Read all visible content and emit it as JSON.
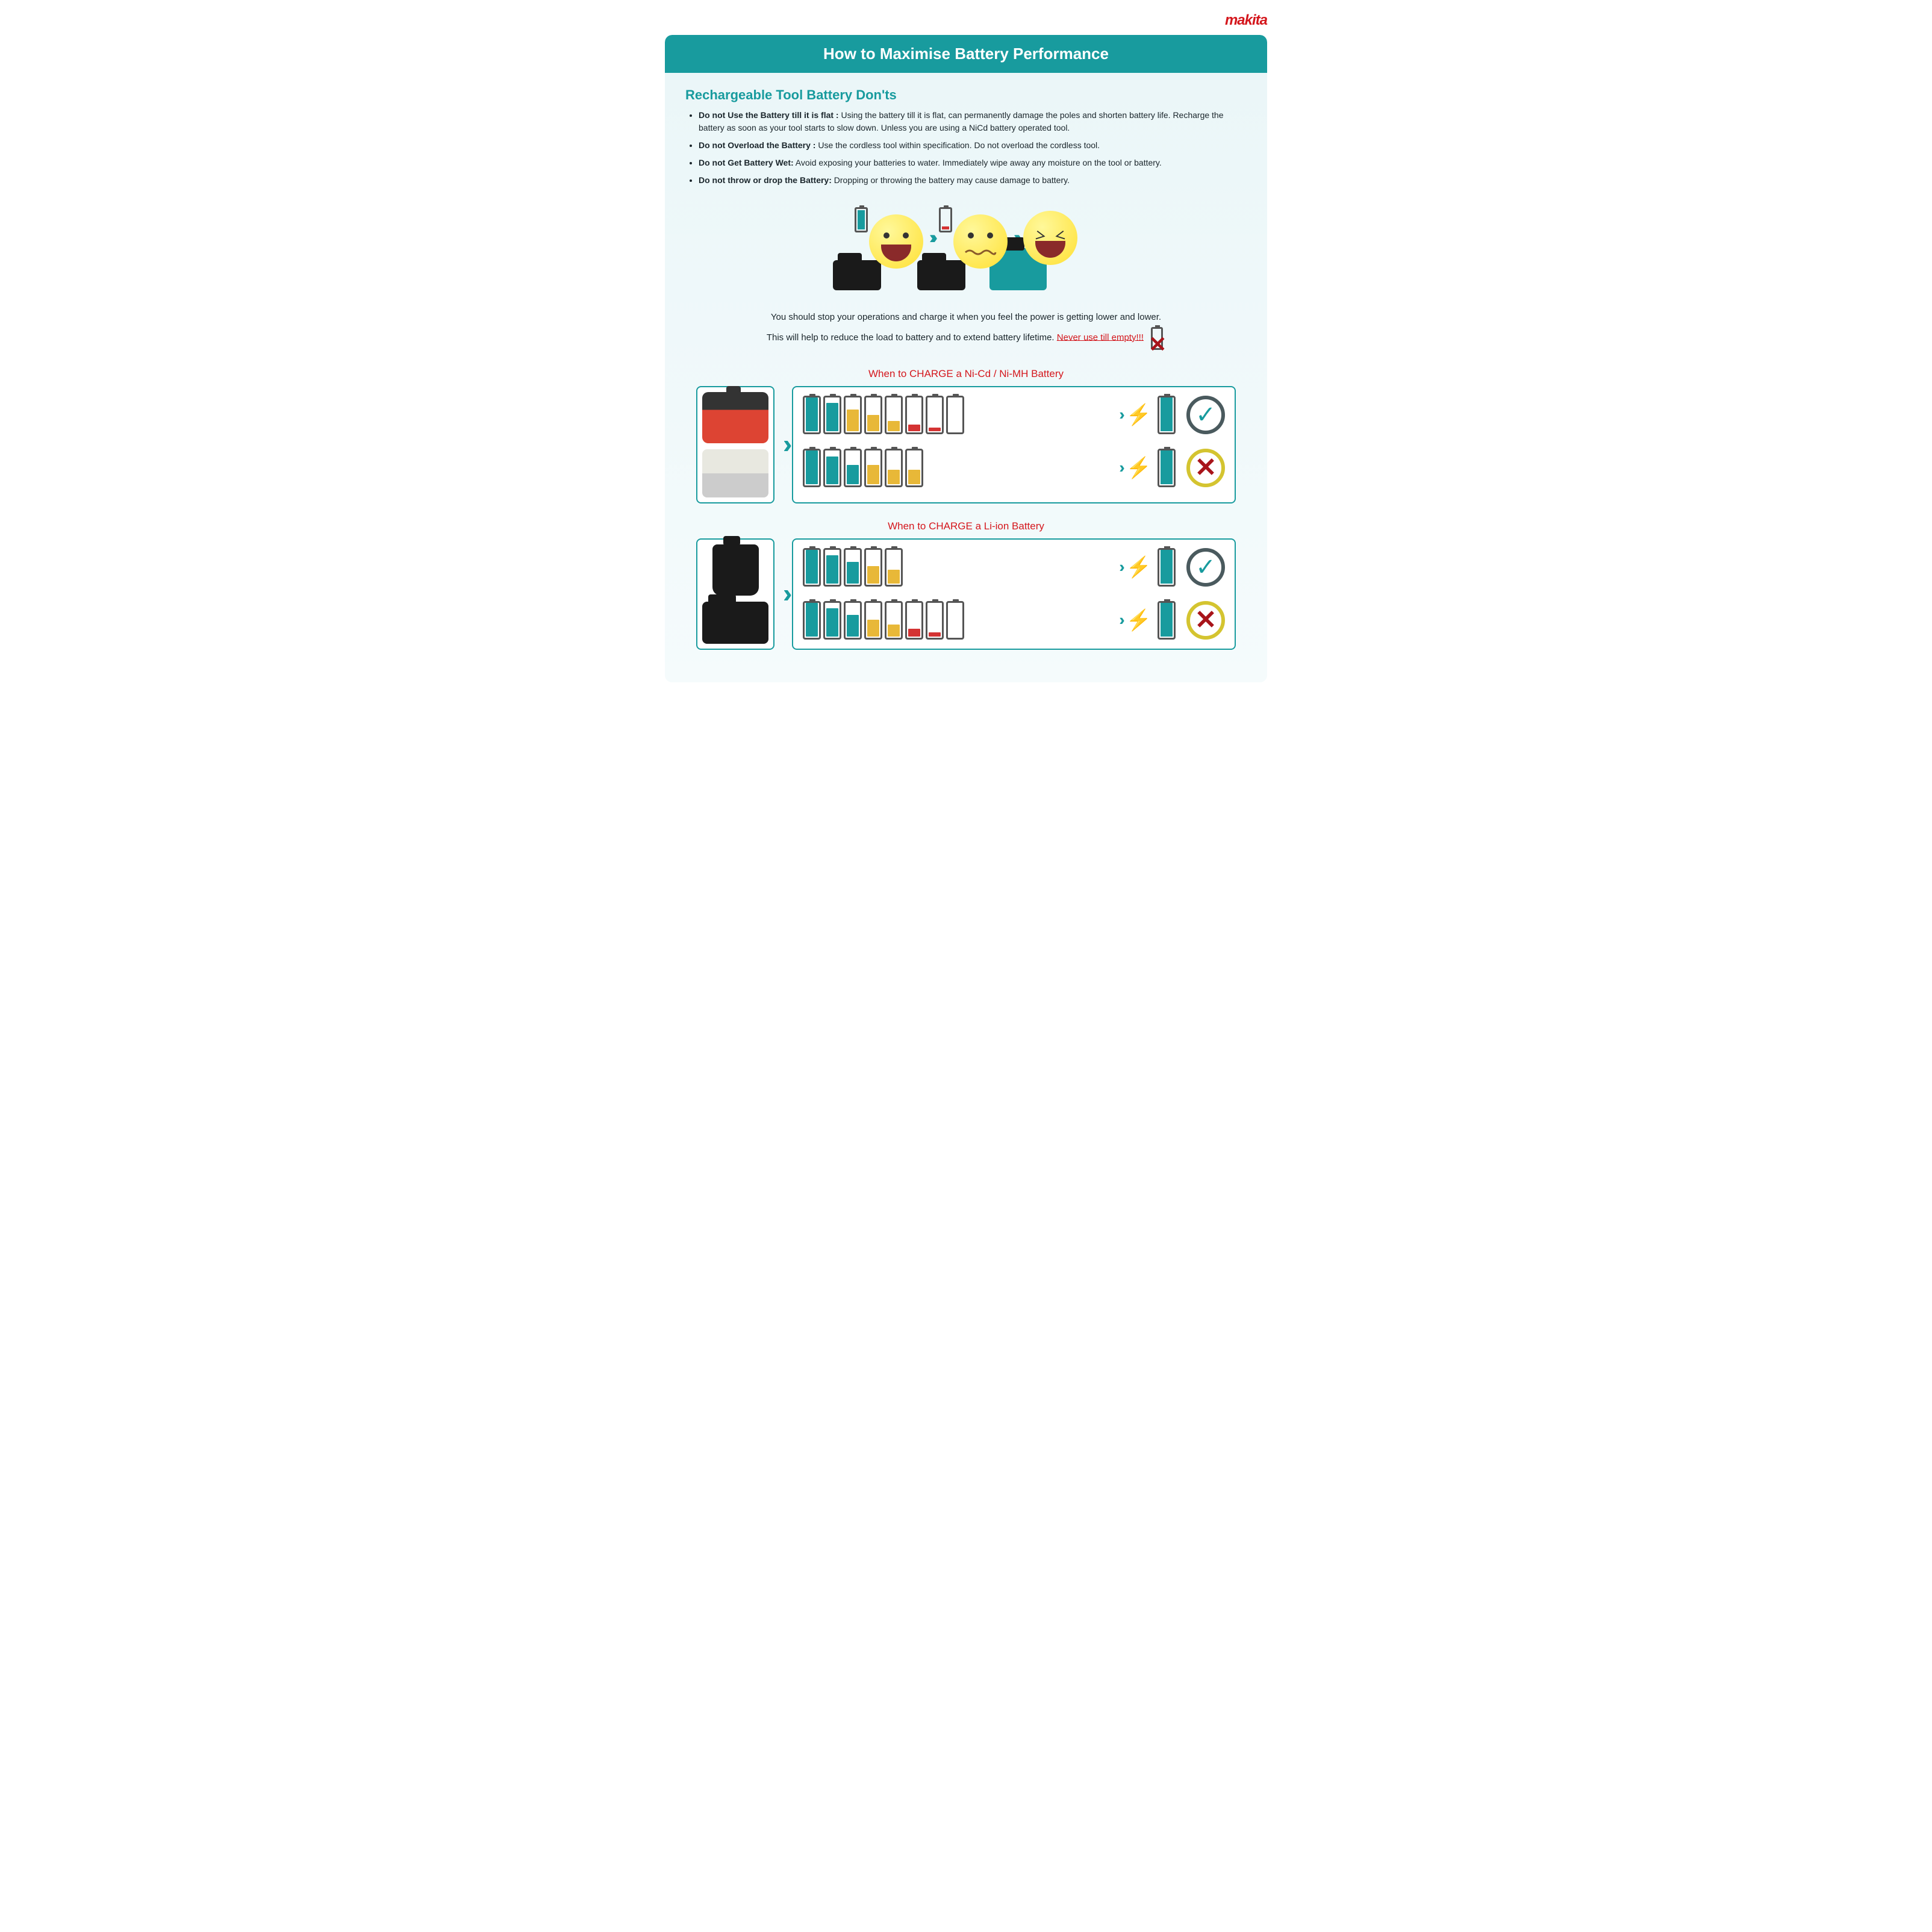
{
  "brand": "makita",
  "title": "How to Maximise Battery Performance",
  "subtitle": "Rechargeable Tool Battery Don'ts",
  "tips": [
    {
      "b": "Do not Use the Battery till it is flat :",
      "t": " Using the battery till it is flat, can permanently damage the poles and shorten battery life. Recharge the battery as soon as your tool starts to slow down. Unless you are using a NiCd battery operated tool."
    },
    {
      "b": "Do not Overload the Battery :",
      "t": " Use the cordless tool within specification. Do not overload the cordless tool."
    },
    {
      "b": "Do not Get Battery Wet:",
      "t": " Avoid exposing your batteries to water. Immediately wipe away any moisture on the tool or battery."
    },
    {
      "b": "Do not throw or drop the Battery:",
      "t": " Dropping or throwing the battery may cause damage to battery."
    }
  ],
  "mid1": "You should stop your operations and charge it when you feel the power is getting lower and lower.",
  "mid2": "This will help to reduce the load to battery and to extend battery lifetime. ",
  "warn": "Never use till empty!!!",
  "section_nicd": "When to CHARGE a Ni-Cd / Ni-MH Battery",
  "section_liion": "When to CHARGE a Li-ion Battery",
  "colors": {
    "teal": "#189b9e",
    "yellow": "#e8b838",
    "red": "#d43333",
    "grey": "#555555"
  },
  "nicd_rows": [
    {
      "cells": [
        {
          "h": 95,
          "c": "#189b9e"
        },
        {
          "h": 80,
          "c": "#189b9e"
        },
        {
          "h": 62,
          "c": "#e8b838"
        },
        {
          "h": 45,
          "c": "#e8b838"
        },
        {
          "h": 28,
          "c": "#e8b838"
        },
        {
          "h": 18,
          "c": "#d43333"
        },
        {
          "h": 10,
          "c": "#d43333"
        },
        {
          "h": 0,
          "c": "#ffffff"
        }
      ],
      "result_fill": 95,
      "ok": true
    },
    {
      "cells": [
        {
          "h": 95,
          "c": "#189b9e"
        },
        {
          "h": 78,
          "c": "#189b9e"
        },
        {
          "h": 55,
          "c": "#189b9e"
        },
        {
          "h": 55,
          "c": "#e8b838"
        },
        {
          "h": 40,
          "c": "#e8b838"
        },
        {
          "h": 40,
          "c": "#e8b838"
        }
      ],
      "result_fill": 95,
      "ok": false
    }
  ],
  "liion_rows": [
    {
      "cells": [
        {
          "h": 95,
          "c": "#189b9e"
        },
        {
          "h": 80,
          "c": "#189b9e"
        },
        {
          "h": 62,
          "c": "#189b9e"
        },
        {
          "h": 50,
          "c": "#e8b838"
        },
        {
          "h": 38,
          "c": "#e8b838"
        }
      ],
      "result_fill": 95,
      "ok": true
    },
    {
      "cells": [
        {
          "h": 95,
          "c": "#189b9e"
        },
        {
          "h": 80,
          "c": "#189b9e"
        },
        {
          "h": 62,
          "c": "#189b9e"
        },
        {
          "h": 48,
          "c": "#e8b838"
        },
        {
          "h": 34,
          "c": "#e8b838"
        },
        {
          "h": 22,
          "c": "#d43333"
        },
        {
          "h": 12,
          "c": "#d43333"
        },
        {
          "h": 0,
          "c": "#ffffff"
        }
      ],
      "result_fill": 95,
      "ok": false
    }
  ]
}
